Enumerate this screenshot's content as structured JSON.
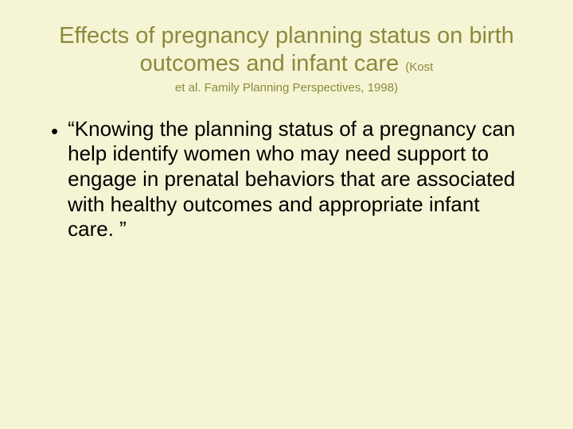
{
  "slide": {
    "title_main": "Effects of pregnancy planning status on birth outcomes and infant care ",
    "title_cite_inline": "(Kost ",
    "title_cite_line2": "et al.  Family Planning Perspectives, 1998)",
    "bullet_text": "“Knowing the planning status of a pregnancy can help identify women who may need support to engage in prenatal behaviors that are associated with healthy outcomes and appropriate infant care. ”"
  },
  "style": {
    "background_color": "#f5f5d5",
    "title_color": "#8a8a3c",
    "body_color": "#000000",
    "title_fontsize": 29,
    "cite_fontsize": 15,
    "body_fontsize": 26,
    "font_family": "Arial"
  }
}
